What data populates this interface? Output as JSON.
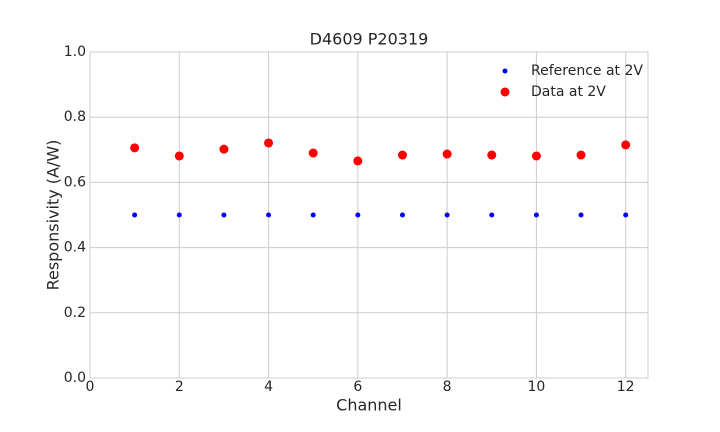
{
  "chart_data": {
    "type": "scatter",
    "title": "D4609 P20319",
    "xlabel": "Channel",
    "ylabel": "Responsivity (A/W)",
    "x": [
      1,
      2,
      3,
      4,
      5,
      6,
      7,
      8,
      9,
      10,
      11,
      12
    ],
    "series": [
      {
        "name": "Reference at 2V",
        "color": "#0000ff",
        "values": [
          0.5,
          0.5,
          0.5,
          0.5,
          0.5,
          0.5,
          0.5,
          0.5,
          0.5,
          0.5,
          0.5,
          0.5
        ]
      },
      {
        "name": "Data at 2V",
        "color": "#ff0000",
        "values": [
          0.706,
          0.681,
          0.702,
          0.721,
          0.69,
          0.666,
          0.684,
          0.687,
          0.684,
          0.681,
          0.684,
          0.715
        ]
      }
    ],
    "xlim": [
      0,
      12.5
    ],
    "ylim": [
      0,
      1
    ],
    "xticks": [
      0,
      2,
      4,
      6,
      8,
      10,
      12
    ],
    "yticks": [
      {
        "value": 0,
        "label": "0.0"
      },
      0.2,
      0.4,
      0.6,
      0.8,
      {
        "value": 1,
        "label": "1.0"
      }
    ],
    "grid": true,
    "legend": "upper right"
  }
}
